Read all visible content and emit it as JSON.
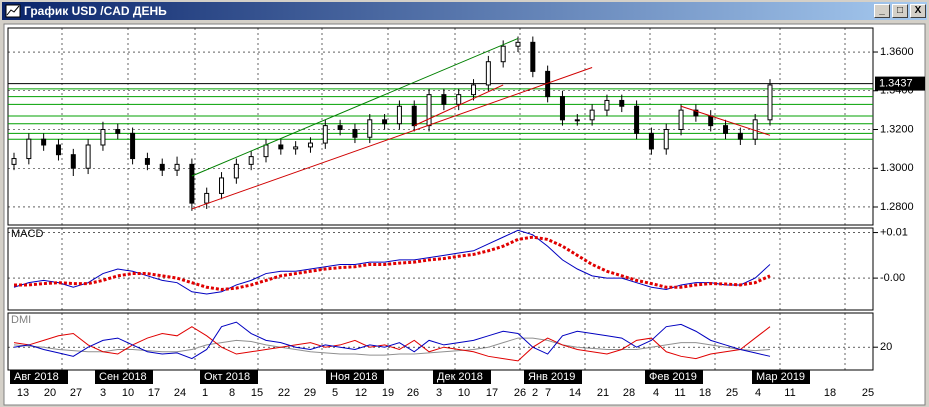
{
  "window": {
    "title": "График USD /CAD  ДЕНЬ"
  },
  "price_panel": {
    "type": "candlestick",
    "ylim": [
      1.2707,
      1.3724
    ],
    "yticks": [
      {
        "value": 1.36,
        "label": "1.3600"
      },
      {
        "value": 1.34,
        "label": "1.3400"
      },
      {
        "value": 1.32,
        "label": "1.3200"
      },
      {
        "value": 1.3,
        "label": "1.3000"
      },
      {
        "value": 1.28,
        "label": "1.2800"
      }
    ],
    "last_price": {
      "value": 1.3437,
      "label": "1.3437"
    },
    "levels_color": "#00a000",
    "levels": [
      1.341,
      1.337,
      1.333,
      1.327,
      1.323,
      1.318,
      1.315
    ],
    "trend_lines": [
      {
        "color": "#008000",
        "points": [
          [
            12,
            1.296
          ],
          [
            34,
            1.367
          ]
        ]
      },
      {
        "color": "#d00000",
        "points": [
          [
            12,
            1.279
          ],
          [
            39,
            1.352
          ]
        ]
      },
      {
        "color": "#d00000",
        "points": [
          [
            27,
            1.322
          ],
          [
            33,
            1.343
          ]
        ]
      },
      {
        "color": "#d00000",
        "points": [
          [
            45,
            1.332
          ],
          [
            51,
            1.317
          ]
        ]
      }
    ],
    "candles": [
      [
        1.302,
        1.308,
        1.299,
        1.305
      ],
      [
        1.305,
        1.318,
        1.302,
        1.315
      ],
      [
        1.315,
        1.318,
        1.309,
        1.312
      ],
      [
        1.312,
        1.315,
        1.304,
        1.307
      ],
      [
        1.307,
        1.31,
        1.296,
        1.3
      ],
      [
        1.3,
        1.315,
        1.297,
        1.312
      ],
      [
        1.312,
        1.324,
        1.309,
        1.32
      ],
      [
        1.32,
        1.323,
        1.315,
        1.318
      ],
      [
        1.318,
        1.321,
        1.302,
        1.305
      ],
      [
        1.305,
        1.308,
        1.299,
        1.302
      ],
      [
        1.302,
        1.305,
        1.296,
        1.299
      ],
      [
        1.299,
        1.306,
        1.296,
        1.302
      ],
      [
        1.302,
        1.305,
        1.278,
        1.282
      ],
      [
        1.282,
        1.29,
        1.279,
        1.287
      ],
      [
        1.287,
        1.298,
        1.284,
        1.295
      ],
      [
        1.295,
        1.305,
        1.292,
        1.302
      ],
      [
        1.302,
        1.309,
        1.299,
        1.306
      ],
      [
        1.306,
        1.315,
        1.303,
        1.312
      ],
      [
        1.312,
        1.315,
        1.307,
        1.31
      ],
      [
        1.31,
        1.314,
        1.307,
        1.311
      ],
      [
        1.311,
        1.316,
        1.308,
        1.313
      ],
      [
        1.313,
        1.325,
        1.31,
        1.322
      ],
      [
        1.322,
        1.325,
        1.317,
        1.32
      ],
      [
        1.32,
        1.323,
        1.313,
        1.316
      ],
      [
        1.316,
        1.328,
        1.313,
        1.325
      ],
      [
        1.325,
        1.328,
        1.32,
        1.323
      ],
      [
        1.323,
        1.335,
        1.32,
        1.332
      ],
      [
        1.332,
        1.335,
        1.319,
        1.322
      ],
      [
        1.322,
        1.341,
        1.319,
        1.338
      ],
      [
        1.338,
        1.341,
        1.33,
        1.333
      ],
      [
        1.333,
        1.341,
        1.33,
        1.338
      ],
      [
        1.338,
        1.346,
        1.335,
        1.343
      ],
      [
        1.343,
        1.358,
        1.34,
        1.355
      ],
      [
        1.355,
        1.366,
        1.352,
        1.363
      ],
      [
        1.363,
        1.368,
        1.36,
        1.365
      ],
      [
        1.365,
        1.368,
        1.347,
        1.35
      ],
      [
        1.35,
        1.353,
        1.334,
        1.337
      ],
      [
        1.337,
        1.34,
        1.322,
        1.325
      ],
      [
        1.325,
        1.328,
        1.322,
        1.325
      ],
      [
        1.325,
        1.333,
        1.322,
        1.33
      ],
      [
        1.33,
        1.338,
        1.327,
        1.335
      ],
      [
        1.335,
        1.338,
        1.329,
        1.332
      ],
      [
        1.332,
        1.335,
        1.315,
        1.318
      ],
      [
        1.318,
        1.321,
        1.307,
        1.31
      ],
      [
        1.31,
        1.323,
        1.307,
        1.32
      ],
      [
        1.32,
        1.333,
        1.317,
        1.33
      ],
      [
        1.33,
        1.333,
        1.324,
        1.327
      ],
      [
        1.327,
        1.33,
        1.319,
        1.322
      ],
      [
        1.322,
        1.325,
        1.315,
        1.318
      ],
      [
        1.318,
        1.321,
        1.312,
        1.315
      ],
      [
        1.315,
        1.328,
        1.312,
        1.325
      ],
      [
        1.325,
        1.346,
        1.322,
        1.343
      ]
    ]
  },
  "macd_panel": {
    "label": "MACD",
    "ylim": [
      -0.007,
      0.011
    ],
    "yticks": [
      {
        "value": 0.01,
        "label": "+0.01"
      },
      {
        "value": 0,
        "label": "-0.00"
      }
    ],
    "macd_color": "#0000c0",
    "signal_color": "#e00000",
    "macd": [
      -0.002,
      -0.001,
      -0.0005,
      -0.001,
      -0.002,
      -0.001,
      0.001,
      0.002,
      0.0015,
      0.0005,
      -0.0005,
      -0.001,
      -0.003,
      -0.0035,
      -0.003,
      -0.0015,
      -0.0005,
      0.001,
      0.0015,
      0.0015,
      0.002,
      0.0025,
      0.003,
      0.003,
      0.0035,
      0.0035,
      0.004,
      0.004,
      0.0045,
      0.005,
      0.0055,
      0.006,
      0.0075,
      0.009,
      0.0105,
      0.0095,
      0.007,
      0.004,
      0.002,
      0.0005,
      0,
      0,
      -0.001,
      -0.002,
      -0.0025,
      -0.0015,
      -0.001,
      -0.001,
      -0.0015,
      -0.0015,
      0,
      0.003
    ],
    "signal": [
      -0.0015,
      -0.0015,
      -0.0012,
      -0.001,
      -0.0012,
      -0.0012,
      -0.0005,
      0.0005,
      0.001,
      0.001,
      0.0005,
      0,
      -0.001,
      -0.002,
      -0.0025,
      -0.0022,
      -0.0015,
      -0.0005,
      0.0005,
      0.001,
      0.0015,
      0.002,
      0.0023,
      0.0025,
      0.003,
      0.003,
      0.0033,
      0.0035,
      0.004,
      0.0043,
      0.0048,
      0.0052,
      0.006,
      0.007,
      0.0085,
      0.009,
      0.0085,
      0.007,
      0.005,
      0.003,
      0.0015,
      0.0005,
      -0.0005,
      -0.0012,
      -0.002,
      -0.002,
      -0.0015,
      -0.0012,
      -0.0013,
      -0.0015,
      -0.001,
      0.0005
    ]
  },
  "dmi_panel": {
    "label": "DMI",
    "ylim": [
      0,
      50
    ],
    "yticks": [
      20
    ],
    "plus_color": "#0000c0",
    "minus_color": "#e00000",
    "adx_color": "#909090",
    "plus_di": [
      20,
      22,
      18,
      15,
      12,
      20,
      26,
      28,
      22,
      16,
      14,
      15,
      10,
      18,
      38,
      42,
      32,
      26,
      24,
      20,
      18,
      22,
      20,
      18,
      22,
      20,
      24,
      16,
      26,
      22,
      24,
      26,
      30,
      34,
      32,
      20,
      14,
      30,
      34,
      32,
      30,
      28,
      20,
      26,
      38,
      40,
      34,
      26,
      22,
      18,
      15,
      12
    ],
    "minus_di": [
      24,
      22,
      26,
      30,
      32,
      22,
      16,
      14,
      22,
      28,
      32,
      30,
      38,
      30,
      20,
      14,
      16,
      18,
      20,
      22,
      24,
      20,
      22,
      26,
      20,
      22,
      18,
      26,
      16,
      20,
      18,
      16,
      12,
      10,
      8,
      20,
      28,
      22,
      18,
      16,
      14,
      18,
      26,
      28,
      16,
      12,
      10,
      14,
      16,
      18,
      28,
      38
    ],
    "adx": [
      22,
      21,
      20,
      18,
      17,
      16,
      16,
      18,
      18,
      17,
      16,
      16,
      18,
      22,
      24,
      26,
      25,
      22,
      20,
      18,
      16,
      15,
      14,
      14,
      13,
      13,
      14,
      14,
      15,
      16,
      17,
      18,
      20,
      24,
      28,
      28,
      26,
      22,
      20,
      19,
      18,
      18,
      18,
      20,
      22,
      24,
      24,
      22,
      20,
      18,
      17,
      18
    ]
  },
  "x_axis": {
    "months": [
      "Авг 2018",
      "Сен 2018",
      "Окт 2018",
      "Ноя 2018",
      "Дек 2018",
      "Янв 2019",
      "Фев 2019",
      "Мар 2019"
    ],
    "days": [
      "13",
      "20",
      "27",
      "3",
      "10",
      "17",
      "24",
      "1",
      "8",
      "15",
      "22",
      "29",
      "5",
      "12",
      "19",
      "26",
      "3",
      "10",
      "17",
      "26",
      "2",
      "7",
      "14",
      "21",
      "28",
      "4",
      "11",
      "18",
      "25",
      "4",
      "11",
      "18",
      "25"
    ]
  }
}
